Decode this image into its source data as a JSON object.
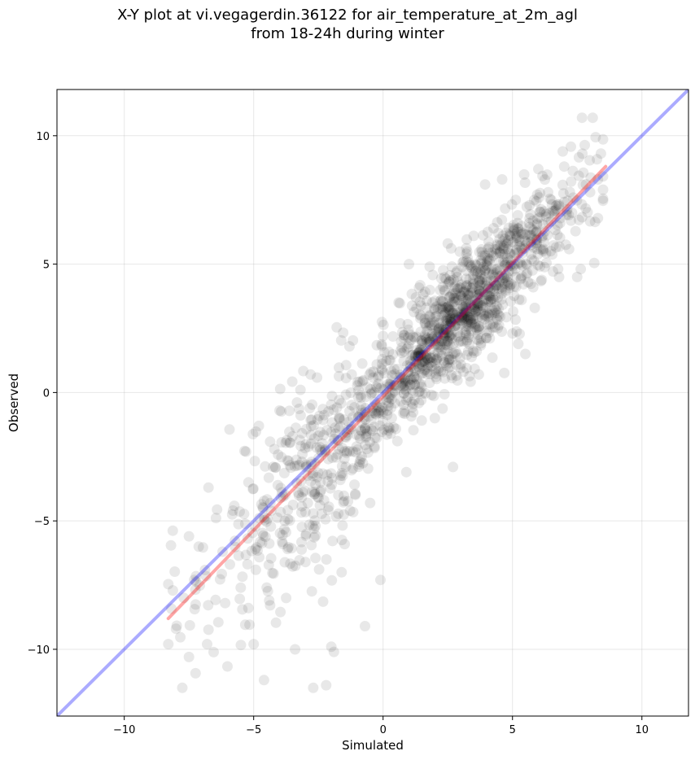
{
  "chart_data": {
    "type": "scatter",
    "title_line1": "X-Y plot at vi.vegagerdin.36122 for air_temperature_at_2m_agl",
    "title_line2": "from 18-24h during winter",
    "xlabel": "Simulated",
    "ylabel": "Observed",
    "xlim": [
      -12.6,
      11.8
    ],
    "ylim": [
      -12.6,
      11.8
    ],
    "xticks": [
      -10,
      -5,
      0,
      5,
      10
    ],
    "yticks": [
      -10,
      -5,
      0,
      5,
      10
    ],
    "xtick_labels": [
      "−10",
      "−5",
      "0",
      "5",
      "10"
    ],
    "ytick_labels": [
      "−10",
      "−5",
      "0",
      "5",
      "10"
    ],
    "grid": true,
    "point_color": "#000000",
    "point_alpha": 0.09,
    "estimated_point_count": 1500,
    "sample_points": [
      [
        -8.3,
        -9.8
      ],
      [
        -8.0,
        -9.2
      ],
      [
        -7.7,
        -8.0
      ],
      [
        -7.5,
        -10.3
      ],
      [
        -7.5,
        -5.6
      ],
      [
        -7.3,
        -7.3
      ],
      [
        -6.8,
        -9.8
      ],
      [
        -6.2,
        -6.2
      ],
      [
        -5.8,
        -4.6
      ],
      [
        -5.5,
        -7.6
      ],
      [
        -5.3,
        -2.3
      ],
      [
        -5.2,
        -3.5
      ],
      [
        -5.0,
        -9.8
      ],
      [
        -4.8,
        -1.3
      ],
      [
        -4.6,
        -11.2
      ],
      [
        -4.4,
        -8.1
      ],
      [
        -4.0,
        -0.7
      ],
      [
        -3.8,
        -5.0
      ],
      [
        -3.4,
        -10.0
      ],
      [
        -3.0,
        -6.6
      ],
      [
        -2.8,
        0.7
      ],
      [
        -2.7,
        -11.5
      ],
      [
        -2.4,
        -3.8
      ],
      [
        -2.2,
        -11.4
      ],
      [
        -2.0,
        -9.9
      ],
      [
        -1.9,
        -10.1
      ],
      [
        -1.7,
        -1.0
      ],
      [
        -1.6,
        -7.0
      ],
      [
        -1.3,
        1.8
      ],
      [
        -0.9,
        -2.7
      ],
      [
        -0.7,
        -9.1
      ],
      [
        -0.6,
        0.2
      ],
      [
        -0.5,
        -4.3
      ],
      [
        -0.1,
        -7.3
      ],
      [
        0.0,
        2.2
      ],
      [
        0.3,
        -1.6
      ],
      [
        0.6,
        3.5
      ],
      [
        0.9,
        -3.1
      ],
      [
        1.0,
        5.0
      ],
      [
        1.2,
        0.6
      ],
      [
        1.5,
        1.9
      ],
      [
        1.8,
        4.9
      ],
      [
        2.0,
        -1.0
      ],
      [
        2.3,
        3.0
      ],
      [
        2.5,
        5.8
      ],
      [
        2.7,
        -2.9
      ],
      [
        3.0,
        2.0
      ],
      [
        3.3,
        3.5
      ],
      [
        3.5,
        6.1
      ],
      [
        3.7,
        0.7
      ],
      [
        4.0,
        4.3
      ],
      [
        4.3,
        3.3
      ],
      [
        4.6,
        8.3
      ],
      [
        4.8,
        5.8
      ],
      [
        5.0,
        2.3
      ],
      [
        5.2,
        6.6
      ],
      [
        5.5,
        1.5
      ],
      [
        5.8,
        4.1
      ],
      [
        6.0,
        8.7
      ],
      [
        6.2,
        5.6
      ],
      [
        6.5,
        7.5
      ],
      [
        6.8,
        4.5
      ],
      [
        7.0,
        8.8
      ],
      [
        7.3,
        7.0
      ],
      [
        7.5,
        4.5
      ],
      [
        7.7,
        9.3
      ],
      [
        8.0,
        7.8
      ],
      [
        8.1,
        10.7
      ],
      [
        8.3,
        8.3
      ],
      [
        8.5,
        7.9
      ]
    ],
    "series": [
      {
        "color": "#0000ff",
        "alpha": 0.33,
        "x": [
          -12.6,
          11.8
        ],
        "y": [
          -12.6,
          11.8
        ]
      },
      {
        "color": "#ff0000",
        "alpha": 0.35,
        "x": [
          -8.3,
          8.6
        ],
        "y": [
          -8.8,
          8.8
        ]
      }
    ]
  }
}
